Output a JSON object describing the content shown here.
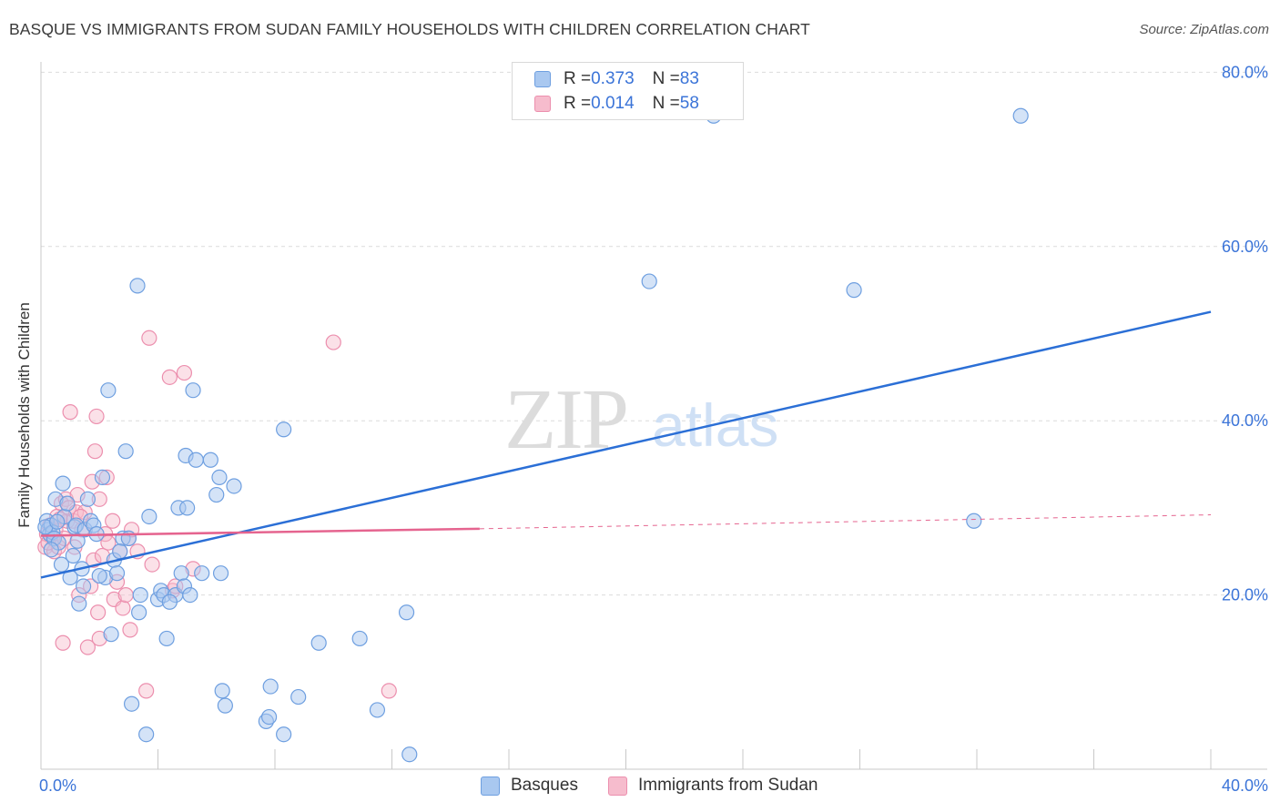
{
  "title": "BASQUE VS IMMIGRANTS FROM SUDAN FAMILY HOUSEHOLDS WITH CHILDREN CORRELATION CHART",
  "source": "Source: ZipAtlas.com",
  "watermark": {
    "zip": "ZIP",
    "atlas": "atlas"
  },
  "legend": {
    "basques": {
      "r_label": "R = ",
      "r_value": "0.373",
      "n_label": "N = ",
      "n_value": "83"
    },
    "sudan": {
      "r_label": "R = ",
      "r_value": "0.014",
      "n_label": "N = ",
      "n_value": "58"
    }
  },
  "colors": {
    "basques_fill": "#a9c8f0",
    "basques_stroke": "#6e9fe0",
    "basques_line": "#2b6fd6",
    "sudan_fill": "#f6bccd",
    "sudan_stroke": "#ec8fae",
    "sudan_line": "#e5648f",
    "grid": "#dcdcdc",
    "axis_text": "#3b74d8"
  },
  "chart_data": {
    "type": "scatter",
    "title": "BASQUE VS IMMIGRANTS FROM SUDAN FAMILY HOUSEHOLDS WITH CHILDREN CORRELATION CHART",
    "xlabel": "",
    "ylabel": "Family Households with Children",
    "xlim": [
      0,
      40
    ],
    "ylim": [
      0,
      82
    ],
    "x_tick_labels": [
      "0.0%",
      "40.0%"
    ],
    "y_ticks": [
      20,
      40,
      60,
      80
    ],
    "y_tick_labels": [
      "20.0%",
      "40.0%",
      "60.0%",
      "80.0%"
    ],
    "grid": true,
    "legend_position": "top-center",
    "series": [
      {
        "name": "Basques",
        "points": [
          [
            0.2,
            28.5
          ],
          [
            0.25,
            27.5
          ],
          [
            0.3,
            27.0
          ],
          [
            0.35,
            28.0
          ],
          [
            0.4,
            27.2
          ],
          [
            0.45,
            26.5
          ],
          [
            0.5,
            31.0
          ],
          [
            0.6,
            26.0
          ],
          [
            0.7,
            23.5
          ],
          [
            0.75,
            32.8
          ],
          [
            0.8,
            29.0
          ],
          [
            0.9,
            30.5
          ],
          [
            1.0,
            22.0
          ],
          [
            1.1,
            24.5
          ],
          [
            1.15,
            27.8
          ],
          [
            1.2,
            28.0
          ],
          [
            1.3,
            19.0
          ],
          [
            1.4,
            23.0
          ],
          [
            1.45,
            21.0
          ],
          [
            1.5,
            27.5
          ],
          [
            1.6,
            31.0
          ],
          [
            1.7,
            28.5
          ],
          [
            1.8,
            28.0
          ],
          [
            1.9,
            27.0
          ],
          [
            2.1,
            33.5
          ],
          [
            2.2,
            22.0
          ],
          [
            2.3,
            43.5
          ],
          [
            2.5,
            24.0
          ],
          [
            2.4,
            15.5
          ],
          [
            2.6,
            22.5
          ],
          [
            2.8,
            26.5
          ],
          [
            2.9,
            36.5
          ],
          [
            3.0,
            26.5
          ],
          [
            3.1,
            7.5
          ],
          [
            3.3,
            55.5
          ],
          [
            3.4,
            20.0
          ],
          [
            3.35,
            18.0
          ],
          [
            3.6,
            4.0
          ],
          [
            3.7,
            29.0
          ],
          [
            4.0,
            19.5
          ],
          [
            4.1,
            20.5
          ],
          [
            4.2,
            20.0
          ],
          [
            4.3,
            15.0
          ],
          [
            4.6,
            20.0
          ],
          [
            4.7,
            30.0
          ],
          [
            4.8,
            22.5
          ],
          [
            4.9,
            21.0
          ],
          [
            4.95,
            36.0
          ],
          [
            5.0,
            30.0
          ],
          [
            5.1,
            20.0
          ],
          [
            5.2,
            43.5
          ],
          [
            5.3,
            35.5
          ],
          [
            5.5,
            22.5
          ],
          [
            5.8,
            35.5
          ],
          [
            6.0,
            31.5
          ],
          [
            6.1,
            33.5
          ],
          [
            6.15,
            22.5
          ],
          [
            6.2,
            9.0
          ],
          [
            6.3,
            7.3
          ],
          [
            6.6,
            32.5
          ],
          [
            7.7,
            5.5
          ],
          [
            7.8,
            6.0
          ],
          [
            7.85,
            9.5
          ],
          [
            8.3,
            4.0
          ],
          [
            8.3,
            39.0
          ],
          [
            8.8,
            8.3
          ],
          [
            9.5,
            14.5
          ],
          [
            10.9,
            15.0
          ],
          [
            11.5,
            6.8
          ],
          [
            12.6,
            1.7
          ],
          [
            12.5,
            18.0
          ],
          [
            20.8,
            56.0
          ],
          [
            23.0,
            75.0
          ],
          [
            27.8,
            55.0
          ],
          [
            31.9,
            28.5
          ],
          [
            33.5,
            75.0
          ],
          [
            0.15,
            27.8
          ],
          [
            0.35,
            25.2
          ],
          [
            0.55,
            28.4
          ],
          [
            1.25,
            26.2
          ],
          [
            2.0,
            22.2
          ],
          [
            2.7,
            25.0
          ],
          [
            4.4,
            19.2
          ]
        ]
      },
      {
        "name": "Immigrants from Sudan",
        "points": [
          [
            0.15,
            25.5
          ],
          [
            0.2,
            27.0
          ],
          [
            0.3,
            28.0
          ],
          [
            0.4,
            26.5
          ],
          [
            0.45,
            25.0
          ],
          [
            0.5,
            27.5
          ],
          [
            0.55,
            29.0
          ],
          [
            0.6,
            25.5
          ],
          [
            0.7,
            30.5
          ],
          [
            0.75,
            14.5
          ],
          [
            0.8,
            26.5
          ],
          [
            0.85,
            31.0
          ],
          [
            0.9,
            28.5
          ],
          [
            0.95,
            30.0
          ],
          [
            1.0,
            41.0
          ],
          [
            1.1,
            28.5
          ],
          [
            1.15,
            25.5
          ],
          [
            1.2,
            29.5
          ],
          [
            1.25,
            31.5
          ],
          [
            1.3,
            20.0
          ],
          [
            1.4,
            27.5
          ],
          [
            1.5,
            29.5
          ],
          [
            1.6,
            14.0
          ],
          [
            1.7,
            21.0
          ],
          [
            1.75,
            33.0
          ],
          [
            1.8,
            24.0
          ],
          [
            1.85,
            36.5
          ],
          [
            1.9,
            40.5
          ],
          [
            1.95,
            18.0
          ],
          [
            2.0,
            31.0
          ],
          [
            2.1,
            24.5
          ],
          [
            2.0,
            15.0
          ],
          [
            2.2,
            27.0
          ],
          [
            2.25,
            33.5
          ],
          [
            2.3,
            26.0
          ],
          [
            2.5,
            19.5
          ],
          [
            2.6,
            21.5
          ],
          [
            2.7,
            25.0
          ],
          [
            2.8,
            18.5
          ],
          [
            2.9,
            20.0
          ],
          [
            3.0,
            26.5
          ],
          [
            3.05,
            16.0
          ],
          [
            3.1,
            27.5
          ],
          [
            3.3,
            25.0
          ],
          [
            3.6,
            9.0
          ],
          [
            3.7,
            49.5
          ],
          [
            3.8,
            23.5
          ],
          [
            4.4,
            45.0
          ],
          [
            4.5,
            20.5
          ],
          [
            4.6,
            21.0
          ],
          [
            4.9,
            45.5
          ],
          [
            5.2,
            23.0
          ],
          [
            10.0,
            49.0
          ],
          [
            11.9,
            9.0
          ],
          [
            0.25,
            26.0
          ],
          [
            0.65,
            28.7
          ],
          [
            1.35,
            29.0
          ],
          [
            2.45,
            28.5
          ]
        ]
      }
    ],
    "trendlines": [
      {
        "series": "Basques",
        "x": [
          0,
          40
        ],
        "y": [
          22.0,
          52.5
        ]
      },
      {
        "series": "Immigrants from Sudan",
        "x": [
          0,
          15,
          40
        ],
        "y": [
          26.8,
          27.6,
          29.2
        ],
        "solid_until_x": 15
      }
    ]
  }
}
